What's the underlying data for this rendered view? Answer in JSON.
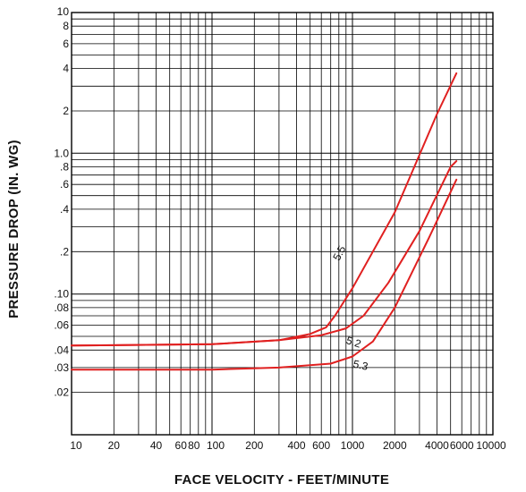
{
  "chart_data": {
    "type": "line",
    "x_scale": "log",
    "y_scale": "log",
    "xlabel": "FACE VELOCITY - FEET/MINUTE",
    "ylabel": "PRESSURE DROP (IN. WG)",
    "xlim": [
      10,
      10000
    ],
    "ylim": [
      0.01,
      10
    ],
    "grid": true,
    "line_color": "#e02020",
    "x_ticks": [
      {
        "value": 10,
        "label": "10"
      },
      {
        "value": 20,
        "label": "20"
      },
      {
        "value": 40,
        "label": "40"
      },
      {
        "value": 60,
        "label": "60"
      },
      {
        "value": 80,
        "label": "80"
      },
      {
        "value": 100,
        "label": "100"
      },
      {
        "value": 200,
        "label": "200"
      },
      {
        "value": 400,
        "label": "400"
      },
      {
        "value": 600,
        "label": "600"
      },
      {
        "value": 1000,
        "label": "1000"
      },
      {
        "value": 2000,
        "label": "2000"
      },
      {
        "value": 4000,
        "label": "4000"
      },
      {
        "value": 6000,
        "label": "6000"
      },
      {
        "value": 10000,
        "label": "10000"
      }
    ],
    "y_ticks": [
      {
        "value": 10,
        "label": "10"
      },
      {
        "value": 8,
        "label": "8"
      },
      {
        "value": 6,
        "label": "6"
      },
      {
        "value": 4,
        "label": "4"
      },
      {
        "value": 2,
        "label": "2"
      },
      {
        "value": 1,
        "label": "1.0"
      },
      {
        "value": 0.8,
        "label": ".8"
      },
      {
        "value": 0.6,
        "label": ".6"
      },
      {
        "value": 0.4,
        "label": ".4"
      },
      {
        "value": 0.2,
        "label": ".2"
      },
      {
        "value": 0.1,
        "label": ".10"
      },
      {
        "value": 0.08,
        "label": ".08"
      },
      {
        "value": 0.06,
        "label": ".06"
      },
      {
        "value": 0.04,
        "label": ".04"
      },
      {
        "value": 0.03,
        "label": ".03"
      },
      {
        "value": 0.02,
        "label": ".02"
      }
    ],
    "series": [
      {
        "name": "5.5",
        "points": [
          [
            10,
            0.043
          ],
          [
            100,
            0.044
          ],
          [
            300,
            0.047
          ],
          [
            500,
            0.052
          ],
          [
            650,
            0.058
          ],
          [
            750,
            0.07
          ],
          [
            1000,
            0.11
          ],
          [
            2000,
            0.38
          ],
          [
            4000,
            1.9
          ],
          [
            5500,
            3.7
          ]
        ]
      },
      {
        "name": "5.2",
        "points": [
          [
            10,
            0.043
          ],
          [
            100,
            0.044
          ],
          [
            300,
            0.047
          ],
          [
            600,
            0.051
          ],
          [
            900,
            0.057
          ],
          [
            1200,
            0.07
          ],
          [
            1800,
            0.12
          ],
          [
            3000,
            0.28
          ],
          [
            5000,
            0.8
          ],
          [
            5500,
            0.88
          ]
        ]
      },
      {
        "name": "5.3",
        "points": [
          [
            10,
            0.029
          ],
          [
            100,
            0.029
          ],
          [
            300,
            0.03
          ],
          [
            700,
            0.032
          ],
          [
            1000,
            0.036
          ],
          [
            1400,
            0.046
          ],
          [
            2000,
            0.08
          ],
          [
            3500,
            0.25
          ],
          [
            5500,
            0.65
          ]
        ]
      }
    ]
  }
}
